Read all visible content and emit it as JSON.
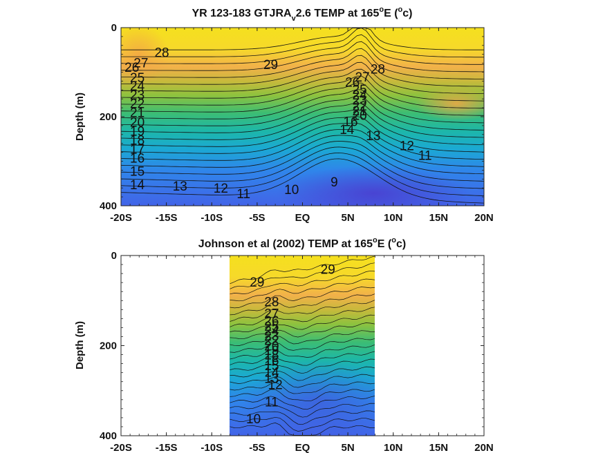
{
  "colors": {
    "warm": "#f5e01e",
    "orange": "#f3a545",
    "green": "#2fb88e",
    "teal": "#16b6c9",
    "blue": "#3e66e6",
    "deep": "#4a3fd0"
  },
  "chart_data": [
    {
      "type": "contour",
      "title_main": "YR 123-183 GTJRA",
      "title_sub": "v",
      "title_mid": "2.6 TEMP at 165",
      "title_sup": "o",
      "title_unit_a": "E (",
      "title_unit_sup": "o",
      "title_unit_b": "c)",
      "ylabel": "Depth (m)",
      "xlim": [
        -20,
        20
      ],
      "ylim": [
        0,
        400
      ],
      "x_ticks": [
        -20,
        -15,
        -10,
        -5,
        0,
        5,
        10,
        15,
        20
      ],
      "x_tick_labels": [
        "-20S",
        "-15S",
        "-10S",
        "-5S",
        "EQ",
        "5N",
        "10N",
        "15N",
        "20N"
      ],
      "y_ticks": [
        0,
        200,
        400
      ],
      "y_tick_labels": [
        "0",
        "200",
        "400"
      ],
      "data_range": [
        -20,
        20
      ],
      "contour_labels": [
        {
          "text": "28",
          "lat": -15.5,
          "depth": 55
        },
        {
          "text": "29",
          "lat": -3.5,
          "depth": 82
        },
        {
          "text": "27",
          "lat": -17.8,
          "depth": 78
        },
        {
          "text": "26",
          "lat": -18.8,
          "depth": 88
        },
        {
          "text": "25",
          "lat": -18.2,
          "depth": 112
        },
        {
          "text": "24",
          "lat": -18.2,
          "depth": 130
        },
        {
          "text": "23",
          "lat": -18.2,
          "depth": 150
        },
        {
          "text": "22",
          "lat": -18.2,
          "depth": 170
        },
        {
          "text": "21",
          "lat": -18.2,
          "depth": 190
        },
        {
          "text": "20",
          "lat": -18.2,
          "depth": 212
        },
        {
          "text": "19",
          "lat": -18.2,
          "depth": 232
        },
        {
          "text": "18",
          "lat": -18.2,
          "depth": 252
        },
        {
          "text": "17",
          "lat": -18.2,
          "depth": 272
        },
        {
          "text": "16",
          "lat": -18.2,
          "depth": 292
        },
        {
          "text": "15",
          "lat": -18.2,
          "depth": 322
        },
        {
          "text": "14",
          "lat": -18.2,
          "depth": 352
        },
        {
          "text": "13",
          "lat": -13.5,
          "depth": 355
        },
        {
          "text": "12",
          "lat": -9.0,
          "depth": 360
        },
        {
          "text": "11",
          "lat": -6.5,
          "depth": 372
        },
        {
          "text": "10",
          "lat": -1.2,
          "depth": 363
        },
        {
          "text": "9",
          "lat": 3.5,
          "depth": 346
        },
        {
          "text": "28",
          "lat": 8.3,
          "depth": 92
        },
        {
          "text": "27",
          "lat": 6.6,
          "depth": 110
        },
        {
          "text": "26",
          "lat": 5.5,
          "depth": 122
        },
        {
          "text": "25",
          "lat": 6.3,
          "depth": 138
        },
        {
          "text": "24",
          "lat": 6.3,
          "depth": 150
        },
        {
          "text": "23",
          "lat": 6.3,
          "depth": 162
        },
        {
          "text": "22",
          "lat": 6.3,
          "depth": 175
        },
        {
          "text": "21",
          "lat": 6.3,
          "depth": 186
        },
        {
          "text": "20",
          "lat": 6.3,
          "depth": 196
        },
        {
          "text": "16",
          "lat": 5.3,
          "depth": 210
        },
        {
          "text": "14",
          "lat": 4.9,
          "depth": 228
        },
        {
          "text": "13",
          "lat": 7.8,
          "depth": 242
        },
        {
          "text": "12",
          "lat": 11.5,
          "depth": 264
        },
        {
          "text": "11",
          "lat": 13.5,
          "depth": 286
        }
      ]
    },
    {
      "type": "contour",
      "title_main": "Johnson et al (2002) TEMP at 165",
      "title_sup": "o",
      "title_unit_a": "E (",
      "title_unit_sup": "o",
      "title_unit_b": "c)",
      "ylabel": "Depth (m)",
      "xlim": [
        -20,
        20
      ],
      "ylim": [
        0,
        400
      ],
      "x_ticks": [
        -20,
        -15,
        -10,
        -5,
        0,
        5,
        10,
        15,
        20
      ],
      "x_tick_labels": [
        "-20S",
        "-15S",
        "-10S",
        "-5S",
        "EQ",
        "5N",
        "10N",
        "15N",
        "20N"
      ],
      "y_ticks": [
        0,
        200,
        400
      ],
      "y_tick_labels": [
        "0",
        "200",
        "400"
      ],
      "data_range": [
        -8,
        8
      ],
      "contour_labels": [
        {
          "text": "29",
          "lat": -5.0,
          "depth": 58
        },
        {
          "text": "29",
          "lat": 2.8,
          "depth": 30
        },
        {
          "text": "28",
          "lat": -3.4,
          "depth": 102
        },
        {
          "text": "27",
          "lat": -3.4,
          "depth": 128
        },
        {
          "text": "26",
          "lat": -3.4,
          "depth": 144
        },
        {
          "text": "25",
          "lat": -3.4,
          "depth": 156
        },
        {
          "text": "24",
          "lat": -3.4,
          "depth": 166
        },
        {
          "text": "23",
          "lat": -3.4,
          "depth": 178
        },
        {
          "text": "22",
          "lat": -3.4,
          "depth": 188
        },
        {
          "text": "20",
          "lat": -3.4,
          "depth": 200
        },
        {
          "text": "19",
          "lat": -3.4,
          "depth": 210
        },
        {
          "text": "18",
          "lat": -3.4,
          "depth": 220
        },
        {
          "text": "16",
          "lat": -3.4,
          "depth": 232
        },
        {
          "text": "15",
          "lat": -3.4,
          "depth": 244
        },
        {
          "text": "14",
          "lat": -3.4,
          "depth": 258
        },
        {
          "text": "13",
          "lat": -3.4,
          "depth": 272
        },
        {
          "text": "12",
          "lat": -3.0,
          "depth": 286
        },
        {
          "text": "11",
          "lat": -3.4,
          "depth": 324
        },
        {
          "text": "10",
          "lat": -5.4,
          "depth": 362
        }
      ]
    }
  ]
}
